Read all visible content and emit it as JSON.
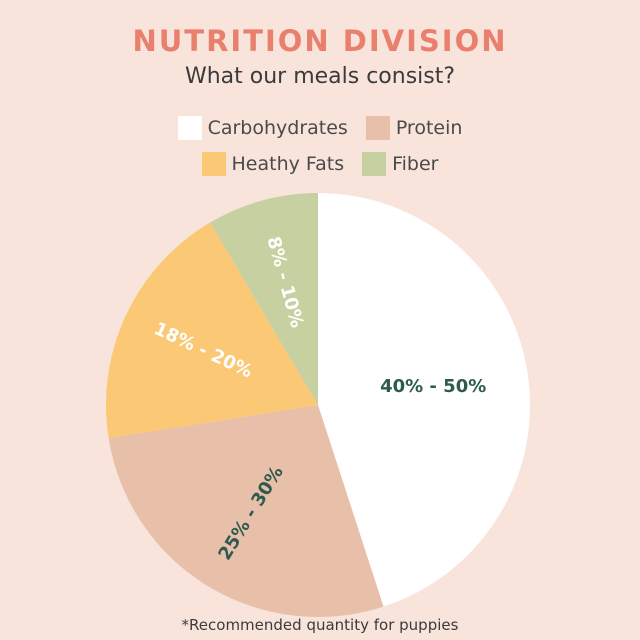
{
  "header": {
    "title": "NUTRITION DIVISION",
    "subtitle": "What our meals consist?"
  },
  "footnote": "*Recommended quantity for puppies",
  "colors": {
    "background": "#f9e4dc",
    "title": "#e8806d",
    "label_dark": "#2f5a4f",
    "label_light": "#ffffff"
  },
  "chart_data": {
    "type": "pie",
    "title": "NUTRITION DIVISION",
    "subtitle": "What our meals consist?",
    "legend_placement": "top",
    "slices": [
      {
        "name": "Carbohydrates",
        "label": "40% - 50%",
        "value": 45,
        "color": "#ffffff"
      },
      {
        "name": "Protein",
        "label": "25% - 30%",
        "value": 27.5,
        "color": "#e8bfa8"
      },
      {
        "name": "Heathy Fats",
        "label": "18% - 20%",
        "value": 19,
        "color": "#fbc875"
      },
      {
        "name": "Fiber",
        "label": "8% - 10%",
        "value": 8.5,
        "color": "#c6d0a0"
      }
    ]
  }
}
